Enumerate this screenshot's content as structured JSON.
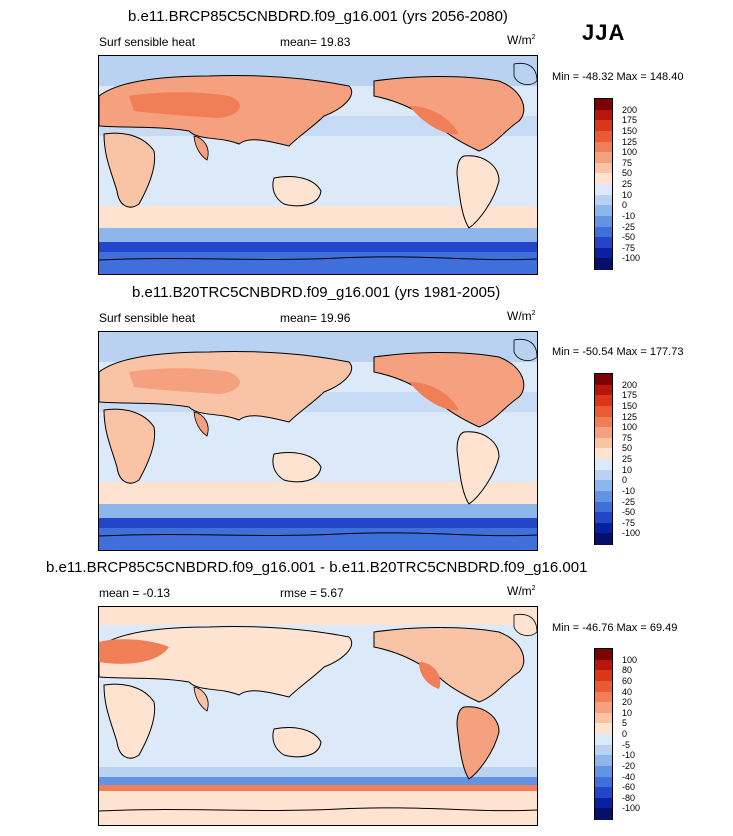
{
  "season": "JJA",
  "panels": [
    {
      "title": "b.e11.BRCP85C5CNBDRD.f09_g16.001 (yrs 2056-2080)",
      "left_label": "Surf sensible heat",
      "center_label": "mean=  19.83",
      "units": "W/m",
      "units_sup": "2",
      "minmax": "Min = -48.32 Max = 148.40",
      "colorbar": {
        "labels": [
          "200",
          "175",
          "150",
          "125",
          "100",
          "75",
          "50",
          "25",
          "10",
          "0",
          "-10",
          "-25",
          "-50",
          "-75",
          "-100"
        ],
        "colors": [
          "#7a0403",
          "#b8160d",
          "#d9361a",
          "#ea5a34",
          "#f07e57",
          "#f5a07e",
          "#f9c3a6",
          "#fde3d0",
          "#dbe9f8",
          "#b9d2f2",
          "#8fb6ec",
          "#6394e3",
          "#3e6fdb",
          "#2346c8",
          "#0a20a0",
          "#06106a"
        ]
      }
    },
    {
      "title": "b.e11.B20TRC5CNBDRD.f09_g16.001 (yrs 1981-2005)",
      "left_label": "Surf sensible heat",
      "center_label": "mean=  19.96",
      "units": "W/m",
      "units_sup": "2",
      "minmax": "Min = -50.54 Max = 177.73",
      "colorbar": {
        "labels": [
          "200",
          "175",
          "150",
          "125",
          "100",
          "75",
          "50",
          "25",
          "10",
          "0",
          "-10",
          "-25",
          "-50",
          "-75",
          "-100"
        ],
        "colors": [
          "#7a0403",
          "#b8160d",
          "#d9361a",
          "#ea5a34",
          "#f07e57",
          "#f5a07e",
          "#f9c3a6",
          "#fde3d0",
          "#dbe9f8",
          "#b9d2f2",
          "#8fb6ec",
          "#6394e3",
          "#3e6fdb",
          "#2346c8",
          "#0a20a0",
          "#06106a"
        ]
      }
    },
    {
      "title": "b.e11.BRCP85C5CNBDRD.f09_g16.001 - b.e11.B20TRC5CNBDRD.f09_g16.001",
      "left_label": "mean =  -0.13",
      "center_label": "rmse =  5.67",
      "units": "W/m",
      "units_sup": "2",
      "minmax": "Min = -46.76 Max =  69.49",
      "colorbar": {
        "labels": [
          "100",
          "80",
          "60",
          "40",
          "20",
          "10",
          "5",
          "0",
          "-5",
          "-10",
          "-20",
          "-40",
          "-60",
          "-80",
          "-100"
        ],
        "colors": [
          "#7a0403",
          "#b8160d",
          "#d9361a",
          "#ea5a34",
          "#f07e57",
          "#f5a07e",
          "#f9c3a6",
          "#fde3d0",
          "#dbe9f8",
          "#b9d2f2",
          "#8fb6ec",
          "#6394e3",
          "#3e6fdb",
          "#2346c8",
          "#0a20a0",
          "#06106a"
        ]
      }
    }
  ]
}
